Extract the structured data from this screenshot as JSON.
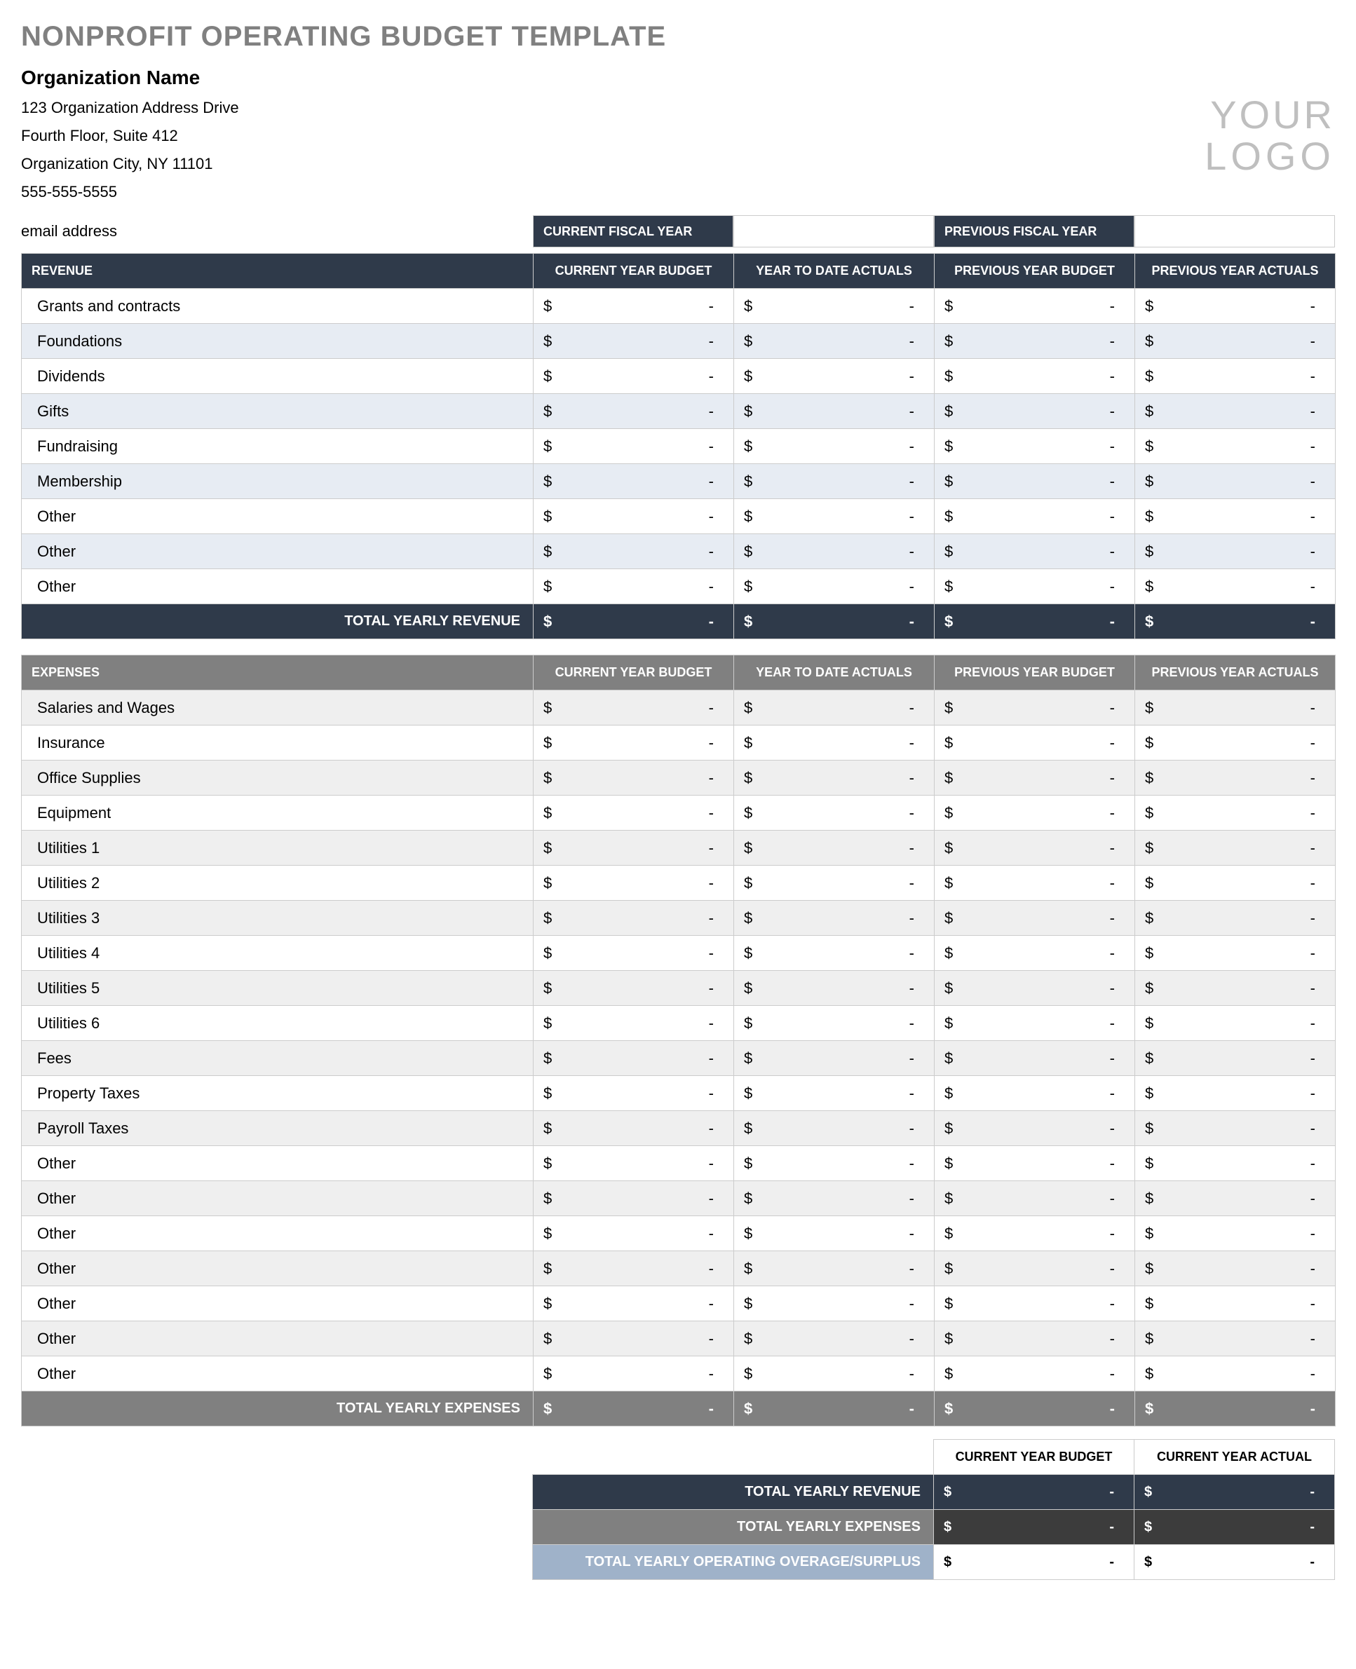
{
  "title": "NONPROFIT OPERATING BUDGET TEMPLATE",
  "organization": {
    "name": "Organization Name",
    "address1": "123 Organization Address Drive",
    "address2": "Fourth Floor, Suite 412",
    "city_line": "Organization City, NY  11101",
    "phone": "555-555-5555",
    "email": "email address"
  },
  "logo": {
    "line1": "YOUR",
    "line2": "LOGO",
    "color": "#bfbfbf"
  },
  "fiscal_year_bar": {
    "current_label": "CURRENT FISCAL YEAR",
    "current_value": "",
    "previous_label": "PREVIOUS FISCAL YEAR",
    "previous_value": ""
  },
  "columns": {
    "c1": "CURRENT YEAR BUDGET",
    "c2": "YEAR TO DATE ACTUALS",
    "c3": "PREVIOUS YEAR BUDGET",
    "c4": "PREVIOUS YEAR ACTUALS"
  },
  "revenue": {
    "header": "REVENUE",
    "header_bg": "#2f3a4a",
    "row_alt_bg": "#e7ecf3",
    "items": [
      {
        "label": "Grants and contracts",
        "v": [
          "-",
          "-",
          "-",
          "-"
        ]
      },
      {
        "label": "Foundations",
        "v": [
          "-",
          "-",
          "-",
          "-"
        ]
      },
      {
        "label": "Dividends",
        "v": [
          "-",
          "-",
          "-",
          "-"
        ]
      },
      {
        "label": "Gifts",
        "v": [
          "-",
          "-",
          "-",
          "-"
        ]
      },
      {
        "label": "Fundraising",
        "v": [
          "-",
          "-",
          "-",
          "-"
        ]
      },
      {
        "label": "Membership",
        "v": [
          "-",
          "-",
          "-",
          "-"
        ]
      },
      {
        "label": "Other",
        "v": [
          "-",
          "-",
          "-",
          "-"
        ]
      },
      {
        "label": "Other",
        "v": [
          "-",
          "-",
          "-",
          "-"
        ]
      },
      {
        "label": "Other",
        "v": [
          "-",
          "-",
          "-",
          "-"
        ]
      }
    ],
    "total_label": "TOTAL YEARLY REVENUE",
    "totals": [
      "-",
      "-",
      "-",
      "-"
    ]
  },
  "expenses": {
    "header": "EXPENSES",
    "header_bg": "#808080",
    "row_alt_bg": "#efefef",
    "items": [
      {
        "label": "Salaries and Wages",
        "v": [
          "-",
          "-",
          "-",
          "-"
        ]
      },
      {
        "label": "Insurance",
        "v": [
          "-",
          "-",
          "-",
          "-"
        ]
      },
      {
        "label": "Office Supplies",
        "v": [
          "-",
          "-",
          "-",
          "-"
        ]
      },
      {
        "label": "Equipment",
        "v": [
          "-",
          "-",
          "-",
          "-"
        ]
      },
      {
        "label": "Utilities 1",
        "v": [
          "-",
          "-",
          "-",
          "-"
        ]
      },
      {
        "label": "Utilities 2",
        "v": [
          "-",
          "-",
          "-",
          "-"
        ]
      },
      {
        "label": "Utilities 3",
        "v": [
          "-",
          "-",
          "-",
          "-"
        ]
      },
      {
        "label": "Utilities 4",
        "v": [
          "-",
          "-",
          "-",
          "-"
        ]
      },
      {
        "label": "Utilities 5",
        "v": [
          "-",
          "-",
          "-",
          "-"
        ]
      },
      {
        "label": "Utilities 6",
        "v": [
          "-",
          "-",
          "-",
          "-"
        ]
      },
      {
        "label": "Fees",
        "v": [
          "-",
          "-",
          "-",
          "-"
        ]
      },
      {
        "label": "Property Taxes",
        "v": [
          "-",
          "-",
          "-",
          "-"
        ]
      },
      {
        "label": "Payroll Taxes",
        "v": [
          "-",
          "-",
          "-",
          "-"
        ]
      },
      {
        "label": "Other",
        "v": [
          "-",
          "-",
          "-",
          "-"
        ]
      },
      {
        "label": "Other",
        "v": [
          "-",
          "-",
          "-",
          "-"
        ]
      },
      {
        "label": "Other",
        "v": [
          "-",
          "-",
          "-",
          "-"
        ]
      },
      {
        "label": "Other",
        "v": [
          "-",
          "-",
          "-",
          "-"
        ]
      },
      {
        "label": "Other",
        "v": [
          "-",
          "-",
          "-",
          "-"
        ]
      },
      {
        "label": "Other",
        "v": [
          "-",
          "-",
          "-",
          "-"
        ]
      },
      {
        "label": "Other",
        "v": [
          "-",
          "-",
          "-",
          "-"
        ]
      }
    ],
    "total_label": "TOTAL YEARLY EXPENSES",
    "totals": [
      "-",
      "-",
      "-",
      "-"
    ]
  },
  "summary": {
    "col1": "CURRENT YEAR BUDGET",
    "col2": "CURRENT YEAR ACTUAL",
    "rows": [
      {
        "kind": "rev",
        "label": "TOTAL YEARLY REVENUE",
        "label_bg": "#2f3a4a",
        "cell_bg": "#2f3a4a",
        "v": [
          "-",
          "-"
        ]
      },
      {
        "kind": "exp",
        "label": "TOTAL YEARLY EXPENSES",
        "label_bg": "#808080",
        "cell_bg": "#3c3c3c",
        "v": [
          "-",
          "-"
        ]
      },
      {
        "kind": "ovr",
        "label": "TOTAL YEARLY OPERATING OVERAGE/SURPLUS",
        "label_bg": "#9fb2c9",
        "cell_bg": "#ffffff",
        "v": [
          "-",
          "-"
        ]
      }
    ]
  },
  "currency_symbol": "$",
  "colors": {
    "title": "#808080",
    "border": "#cccccc",
    "dark_blue": "#2f3a4a",
    "gray": "#808080",
    "dark_gray": "#3c3c3c",
    "pale_blue": "#9fb2c9"
  }
}
